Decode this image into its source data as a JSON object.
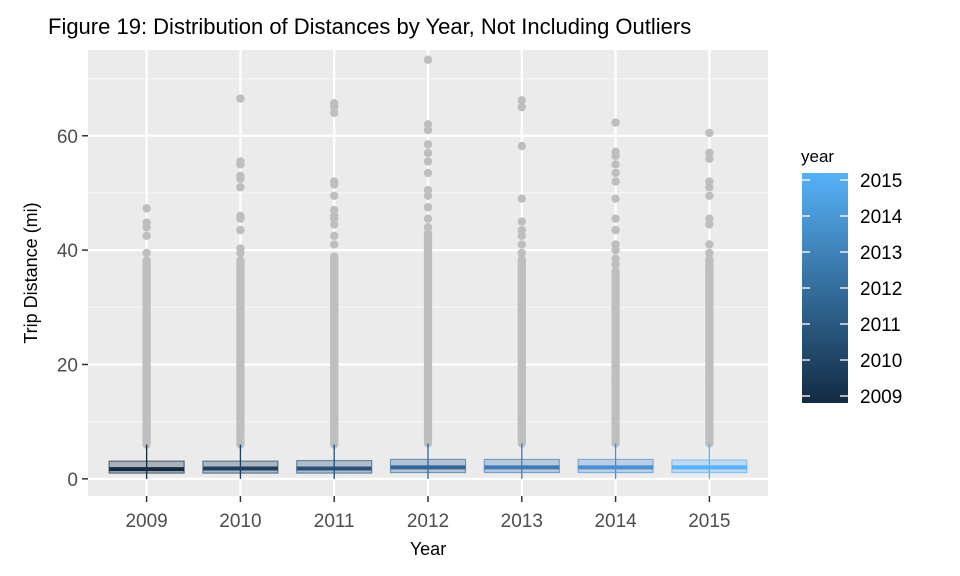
{
  "chart_data": {
    "type": "boxplot",
    "title": "Figure 19: Distribution of Distances by Year, Not Including Outliers",
    "xlabel": "Year",
    "ylabel": "Trip Distance (mi)",
    "categories": [
      "2009",
      "2010",
      "2011",
      "2012",
      "2013",
      "2014",
      "2015"
    ],
    "ylim": [
      -3,
      75
    ],
    "yticks": [
      0,
      20,
      40,
      60
    ],
    "grid": true,
    "panel_background": "#ebebeb",
    "outlier_color": "#bebebe",
    "legend": {
      "title": "year",
      "placement": "right",
      "labels": [
        "2015",
        "2014",
        "2013",
        "2012",
        "2011",
        "2010",
        "2009"
      ],
      "values": [
        2015,
        2014,
        2013,
        2012,
        2011,
        2010,
        2009
      ],
      "color_low": "#132b43",
      "color_high": "#56b1f7"
    },
    "boxes": [
      {
        "year": "2009",
        "q1": 1.0,
        "median": 1.7,
        "q3": 3.1,
        "whisker_low": 0,
        "whisker_high": 6.0,
        "color": "#132b43",
        "outlier_range": [
          6.0,
          38.5
        ],
        "outliers": [
          39.5,
          42.5,
          44.0,
          44.8,
          47.3
        ]
      },
      {
        "year": "2010",
        "q1": 1.0,
        "median": 1.8,
        "q3": 3.1,
        "whisker_low": 0,
        "whisker_high": 6.0,
        "color": "#1d3f61",
        "outlier_range": [
          6.0,
          38.5
        ],
        "outliers": [
          39.5,
          40.3,
          43.5,
          45.5,
          46.0,
          51.0,
          52.5,
          53.0,
          55.0,
          55.5,
          66.5
        ]
      },
      {
        "year": "2011",
        "q1": 1.0,
        "median": 1.8,
        "q3": 3.2,
        "whisker_low": 0,
        "whisker_high": 6.0,
        "color": "#28527c",
        "outlier_range": [
          6.0,
          39.0
        ],
        "outliers": [
          41.0,
          42.5,
          44.5,
          45.5,
          46.0,
          47.0,
          49.5,
          51.5,
          52.0,
          64.0,
          65.0,
          65.7
        ]
      },
      {
        "year": "2012",
        "q1": 1.1,
        "median": 2.0,
        "q3": 3.4,
        "whisker_low": 0,
        "whisker_high": 6.2,
        "color": "#336598",
        "outlier_range": [
          6.2,
          43.0
        ],
        "outliers": [
          44.0,
          45.5,
          47.5,
          49.5,
          50.5,
          53.5,
          55.5,
          57.0,
          58.5,
          61.0,
          62.0,
          73.3
        ]
      },
      {
        "year": "2013",
        "q1": 1.1,
        "median": 2.0,
        "q3": 3.4,
        "whisker_low": 0,
        "whisker_high": 6.2,
        "color": "#3e79b5",
        "outlier_range": [
          6.2,
          38.5
        ],
        "outliers": [
          39.5,
          41.0,
          42.5,
          43.5,
          45.0,
          49.0,
          58.2,
          65.0,
          66.2
        ]
      },
      {
        "year": "2014",
        "q1": 1.1,
        "median": 2.0,
        "q3": 3.4,
        "whisker_low": 0,
        "whisker_high": 6.2,
        "color": "#4a8ed4",
        "outlier_range": [
          6.2,
          36.5
        ],
        "outliers": [
          37.5,
          38.5,
          40.0,
          41.0,
          43.5,
          45.5,
          49.0,
          52.0,
          53.5,
          55.0,
          56.5,
          57.2,
          62.3
        ]
      },
      {
        "year": "2015",
        "q1": 1.1,
        "median": 2.0,
        "q3": 3.3,
        "whisker_low": 0,
        "whisker_high": 6.2,
        "color": "#56b1f7",
        "outlier_range": [
          6.2,
          38.5
        ],
        "outliers": [
          39.5,
          41.0,
          44.5,
          45.5,
          49.5,
          51.0,
          52.0,
          56.0,
          57.0,
          60.5
        ]
      }
    ]
  }
}
